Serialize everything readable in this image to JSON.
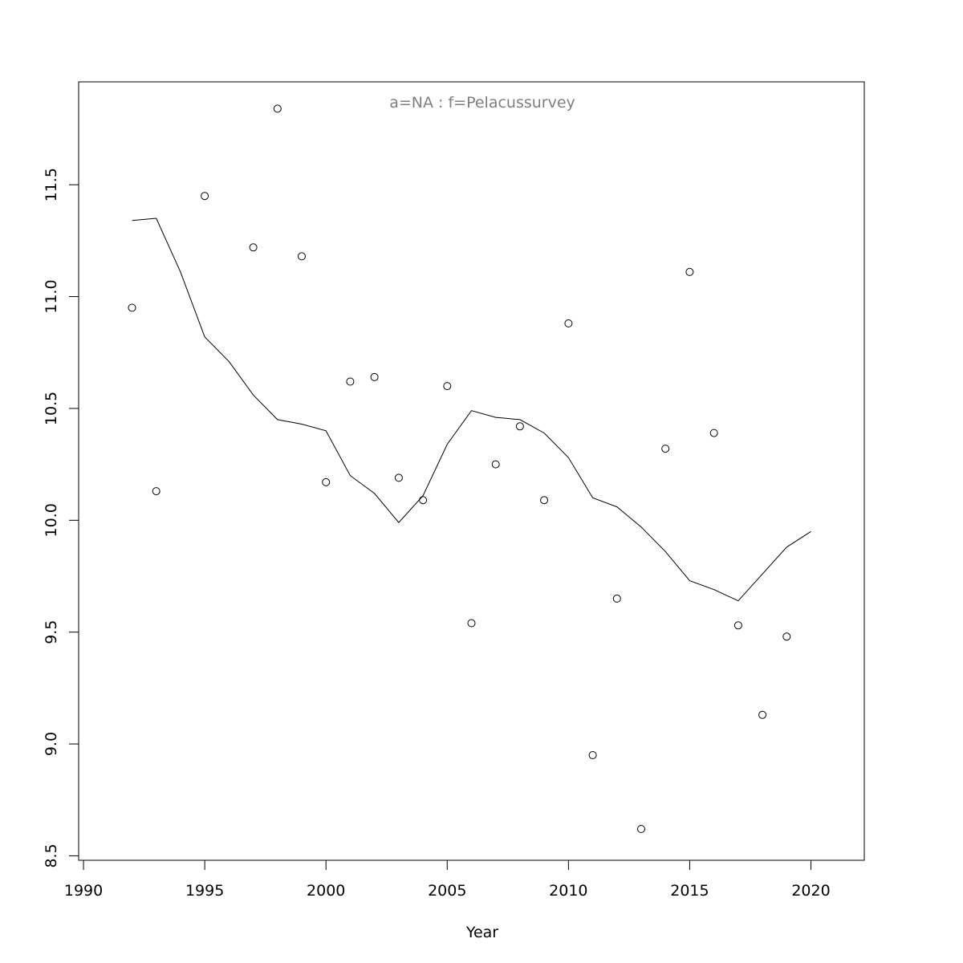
{
  "chart_data": {
    "type": "scatter",
    "subtitle": "a=NA  :  f=Pelacussurvey",
    "xlabel": "Year",
    "ylabel": "",
    "xlim": [
      1989.8,
      2022.2
    ],
    "ylim": [
      8.48,
      11.96
    ],
    "xticks": [
      1990,
      1995,
      2000,
      2005,
      2010,
      2015,
      2020
    ],
    "yticks": [
      8.5,
      9.0,
      9.5,
      10.0,
      10.5,
      11.0,
      11.5
    ],
    "ytick_labels": [
      "8.5",
      "9.0",
      "9.5",
      "10.0",
      "10.5",
      "11.0",
      "11.5"
    ],
    "grid": false,
    "series": [
      {
        "type": "points",
        "x": [
          1992,
          1993,
          1995,
          1997,
          1998,
          1999,
          2000,
          2001,
          2002,
          2003,
          2004,
          2005,
          2006,
          2007,
          2008,
          2009,
          2010,
          2011,
          2012,
          2013,
          2014,
          2015,
          2016,
          2017,
          2018,
          2019
        ],
        "y": [
          10.95,
          10.13,
          11.45,
          11.22,
          11.84,
          11.18,
          10.17,
          10.62,
          10.64,
          10.19,
          10.09,
          10.6,
          9.54,
          10.25,
          10.42,
          10.09,
          10.88,
          8.95,
          9.65,
          8.62,
          10.32,
          11.11,
          10.39,
          9.53,
          9.13,
          9.48
        ]
      },
      {
        "type": "line",
        "x": [
          1992,
          1993,
          1994,
          1995,
          1996,
          1997,
          1998,
          1999,
          2000,
          2001,
          2002,
          2003,
          2004,
          2005,
          2006,
          2007,
          2008,
          2009,
          2010,
          2011,
          2012,
          2013,
          2014,
          2015,
          2016,
          2017,
          2018,
          2019,
          2020
        ],
        "y": [
          11.34,
          11.35,
          11.11,
          10.82,
          10.71,
          10.56,
          10.45,
          10.43,
          10.4,
          10.2,
          10.12,
          9.99,
          10.11,
          10.34,
          10.49,
          10.46,
          10.45,
          10.39,
          10.28,
          10.1,
          10.06,
          9.97,
          9.86,
          9.73,
          9.69,
          9.64,
          9.76,
          9.88,
          9.95
        ]
      }
    ]
  }
}
